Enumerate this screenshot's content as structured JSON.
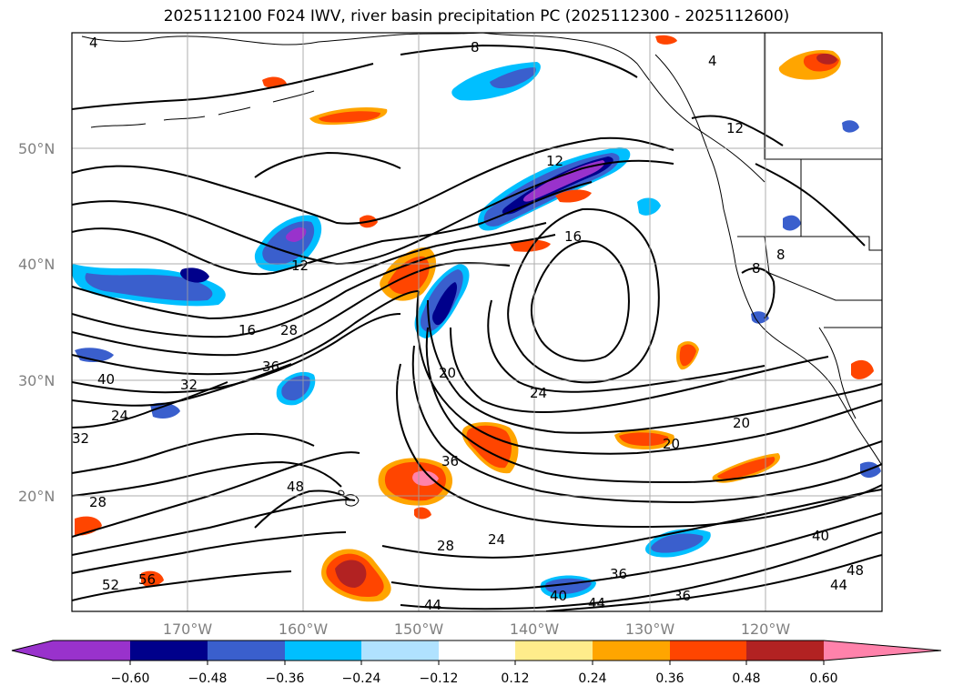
{
  "title": "2025112100 F024 IWV, river basin precipitation PC (2025112300 - 2025112600)",
  "map": {
    "lat_labels": [
      "50°N",
      "40°N",
      "30°N",
      "20°N"
    ],
    "lon_labels": [
      "170°W",
      "160°W",
      "150°W",
      "140°W",
      "130°W",
      "120°W"
    ],
    "contour_labels": [
      "4",
      "8",
      "12",
      "16",
      "28",
      "36",
      "32",
      "40",
      "24",
      "20",
      "48",
      "52",
      "56",
      "44",
      "12",
      "16",
      "36",
      "28",
      "24",
      "20",
      "40",
      "44",
      "48",
      "44",
      "36",
      "40",
      "36",
      "24",
      "20",
      "28",
      "32",
      "8",
      "12",
      "4",
      "8"
    ]
  },
  "colorbar": {
    "colors": [
      "#9932cc",
      "#00008b",
      "#3a5fcd",
      "#00bfff",
      "#b0e2ff",
      "#ffffff",
      "#ffec8b",
      "#ffa500",
      "#ff4500",
      "#b22222",
      "#ff82ab"
    ],
    "tick_labels": [
      "−0.60",
      "−0.48",
      "−0.36",
      "−0.24",
      "−0.12",
      "0.12",
      "0.24",
      "0.36",
      "0.48",
      "0.60"
    ]
  }
}
